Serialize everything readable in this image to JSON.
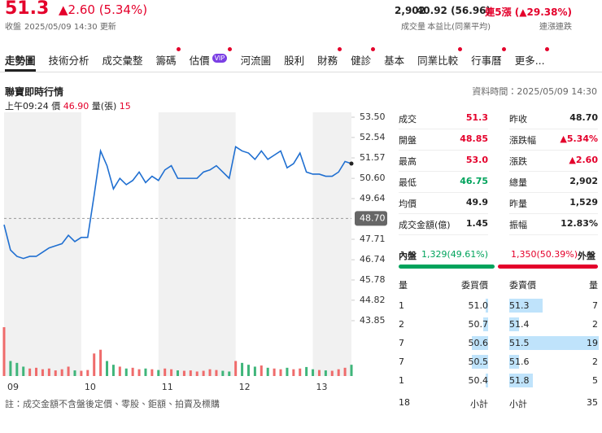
{
  "header": {
    "price": "51.3",
    "change": "▲2.60 (5.34%)",
    "status": "收盤",
    "updated": "2025/05/09 14:30 更新",
    "stats": [
      {
        "value": "2,902",
        "label": "成交量"
      },
      {
        "value": "40.92 (56.96)",
        "label": "本益比(同業平均)"
      },
      {
        "value": "連5漲 (▲29.38%)",
        "label": "連漲連跌",
        "color": "#e4002b"
      }
    ]
  },
  "tabs": [
    {
      "label": "走勢圖",
      "active": true
    },
    {
      "label": "技術分析"
    },
    {
      "label": "成交彙整"
    },
    {
      "label": "籌碼",
      "dot": true
    },
    {
      "label": "估價",
      "badge": "VIP",
      "dot": true
    },
    {
      "label": "河流圖"
    },
    {
      "label": "股利"
    },
    {
      "label": "財務",
      "dot": true
    },
    {
      "label": "健診",
      "dot": true
    },
    {
      "label": "基本"
    },
    {
      "label": "同業比較",
      "dot": true
    },
    {
      "label": "行事曆",
      "dot": true
    },
    {
      "label": "更多...",
      "dot": true
    }
  ],
  "quote": {
    "title": "聯寶即時行情",
    "time": "資料時間：2025/05/09 14:30",
    "tooltip": {
      "time": "上午09:24",
      "price_label": "價",
      "price": "46.90",
      "volume_label": "量(張)",
      "volume": "15"
    }
  },
  "chart_data": {
    "type": "line",
    "color": "#1f6fd1",
    "values": [
      48.4,
      47.2,
      46.9,
      46.8,
      46.9,
      46.9,
      47.1,
      47.3,
      47.4,
      47.5,
      47.9,
      47.6,
      47.8,
      47.8,
      49.8,
      51.9,
      51.2,
      50.1,
      50.6,
      50.3,
      50.5,
      50.9,
      50.4,
      50.7,
      50.5,
      51.0,
      51.2,
      50.6,
      50.6,
      50.6,
      50.6,
      50.9,
      51.0,
      51.2,
      50.9,
      50.6,
      52.1,
      51.9,
      51.8,
      51.5,
      51.9,
      51.5,
      51.7,
      51.9,
      51.1,
      51.3,
      51.8,
      50.9,
      50.8,
      50.8,
      50.7,
      50.7,
      50.9,
      51.4,
      51.3
    ],
    "volume": [
      130,
      40,
      35,
      25,
      20,
      22,
      18,
      20,
      15,
      18,
      25,
      15,
      14,
      16,
      60,
      70,
      40,
      30,
      25,
      20,
      22,
      18,
      20,
      18,
      16,
      20,
      18,
      15,
      14,
      15,
      12,
      14,
      18,
      16,
      14,
      12,
      40,
      35,
      30,
      25,
      28,
      22,
      20,
      18,
      22,
      18,
      20,
      24,
      18,
      16,
      15,
      14,
      18,
      22,
      30
    ],
    "ylim": [
      43.85,
      53.5
    ],
    "yticks": [
      {
        "value": 53.5,
        "label": "53.50"
      },
      52.54,
      51.57,
      {
        "value": 50.6,
        "label": "50.60"
      },
      49.64,
      {
        "value": 48.7,
        "label": "48.70"
      },
      47.71,
      46.74,
      45.78,
      44.82,
      43.85
    ],
    "reference": 48.7,
    "xticks": [
      "09",
      "10",
      "11",
      "12",
      "13"
    ]
  },
  "stats": {
    "left": [
      {
        "label": "成交",
        "value": "51.3",
        "color": "#e4002b"
      },
      {
        "label": "開盤",
        "value": "48.85",
        "color": "#e4002b"
      },
      {
        "label": "最高",
        "value": "53.0",
        "color": "#e4002b"
      },
      {
        "label": "最低",
        "value": "46.75",
        "color": "#00a35c"
      },
      {
        "label": "均價",
        "value": "49.9"
      },
      {
        "label": "成交金額(億)",
        "value": "1.45"
      }
    ],
    "right": [
      {
        "label": "昨收",
        "value": "48.70"
      },
      {
        "label": "漲跌幅",
        "value": "▲5.34%",
        "color": "#e4002b"
      },
      {
        "label": "漲跌",
        "value": "▲2.60",
        "color": "#e4002b"
      },
      {
        "label": "總量",
        "value": "2,902"
      },
      {
        "label": "昨量",
        "value": "1,529"
      },
      {
        "label": "振幅",
        "value": "12.83%"
      }
    ]
  },
  "inout": {
    "inner_label": "內盤",
    "inner": "1,329(49.61%)",
    "outer": "1,350(50.39%)",
    "outer_label": "外盤"
  },
  "orderbook": {
    "headers": [
      "量",
      "委買價",
      "委賣價",
      "量"
    ],
    "bid_volume": [
      1,
      2,
      7,
      7,
      1
    ],
    "bid_price": [
      "51.0",
      "50.7",
      "50.6",
      "50.5",
      "50.4"
    ],
    "ask_price": [
      "51.3",
      "51.4",
      "51.5",
      "51.6",
      "51.8"
    ],
    "ask_volume": [
      7,
      2,
      19,
      2,
      5
    ],
    "footer": [
      "18",
      "小計",
      "小計",
      "35"
    ]
  },
  "note": "註：成交金額不含盤後定價、零股、鉅額、拍賣及標購"
}
